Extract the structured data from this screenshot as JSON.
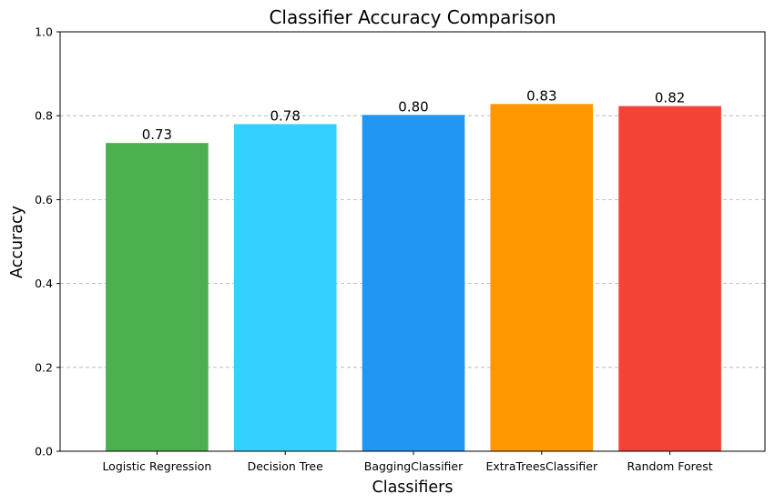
{
  "chart_data": {
    "type": "bar",
    "title": "Classifier Accuracy Comparison",
    "xlabel": "Classifiers",
    "ylabel": "Accuracy",
    "ylim": [
      0,
      1.0
    ],
    "yticks": [
      "0.0",
      "0.2",
      "0.4",
      "0.6",
      "0.8",
      "1.0"
    ],
    "categories": [
      "Logistic Regression",
      "Decision Tree",
      "BaggingClassifier",
      "ExtraTreesClassifier",
      "Random Forest"
    ],
    "values": [
      0.735,
      0.78,
      0.802,
      0.828,
      0.823
    ],
    "value_labels": [
      "0.73",
      "0.78",
      "0.80",
      "0.83",
      "0.82"
    ],
    "colors": [
      "#4caf50",
      "#33d1ff",
      "#2196f3",
      "#ff9800",
      "#f44336"
    ],
    "grid": "y-dashed",
    "legend": "none"
  }
}
